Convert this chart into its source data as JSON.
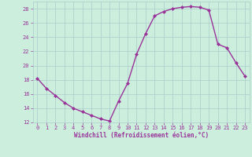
{
  "x": [
    0,
    1,
    2,
    3,
    4,
    5,
    6,
    7,
    8,
    9,
    10,
    11,
    12,
    13,
    14,
    15,
    16,
    17,
    18,
    19,
    20,
    21,
    22,
    23
  ],
  "y": [
    18.2,
    16.8,
    15.8,
    14.8,
    14.0,
    13.5,
    13.0,
    12.5,
    12.2,
    15.0,
    17.5,
    21.6,
    24.5,
    27.0,
    27.6,
    28.0,
    28.2,
    28.3,
    28.2,
    27.8,
    23.0,
    22.5,
    20.4,
    18.5
  ],
  "line_color": "#993399",
  "marker": "D",
  "markersize": 2.0,
  "bg_color": "#cceedd",
  "grid_color": "#aacccc",
  "xlabel": "Windchill (Refroidissement éolien,°C)",
  "ylim": [
    12,
    29
  ],
  "xlim": [
    -0.5,
    23.5
  ],
  "yticks": [
    12,
    14,
    16,
    18,
    20,
    22,
    24,
    26,
    28
  ],
  "xticks": [
    0,
    1,
    2,
    3,
    4,
    5,
    6,
    7,
    8,
    9,
    10,
    11,
    12,
    13,
    14,
    15,
    16,
    17,
    18,
    19,
    20,
    21,
    22,
    23
  ],
  "tick_color": "#993399",
  "xlabel_color": "#993399",
  "linewidth": 1.0,
  "tick_fontsize": 5.0,
  "xlabel_fontsize": 5.5
}
